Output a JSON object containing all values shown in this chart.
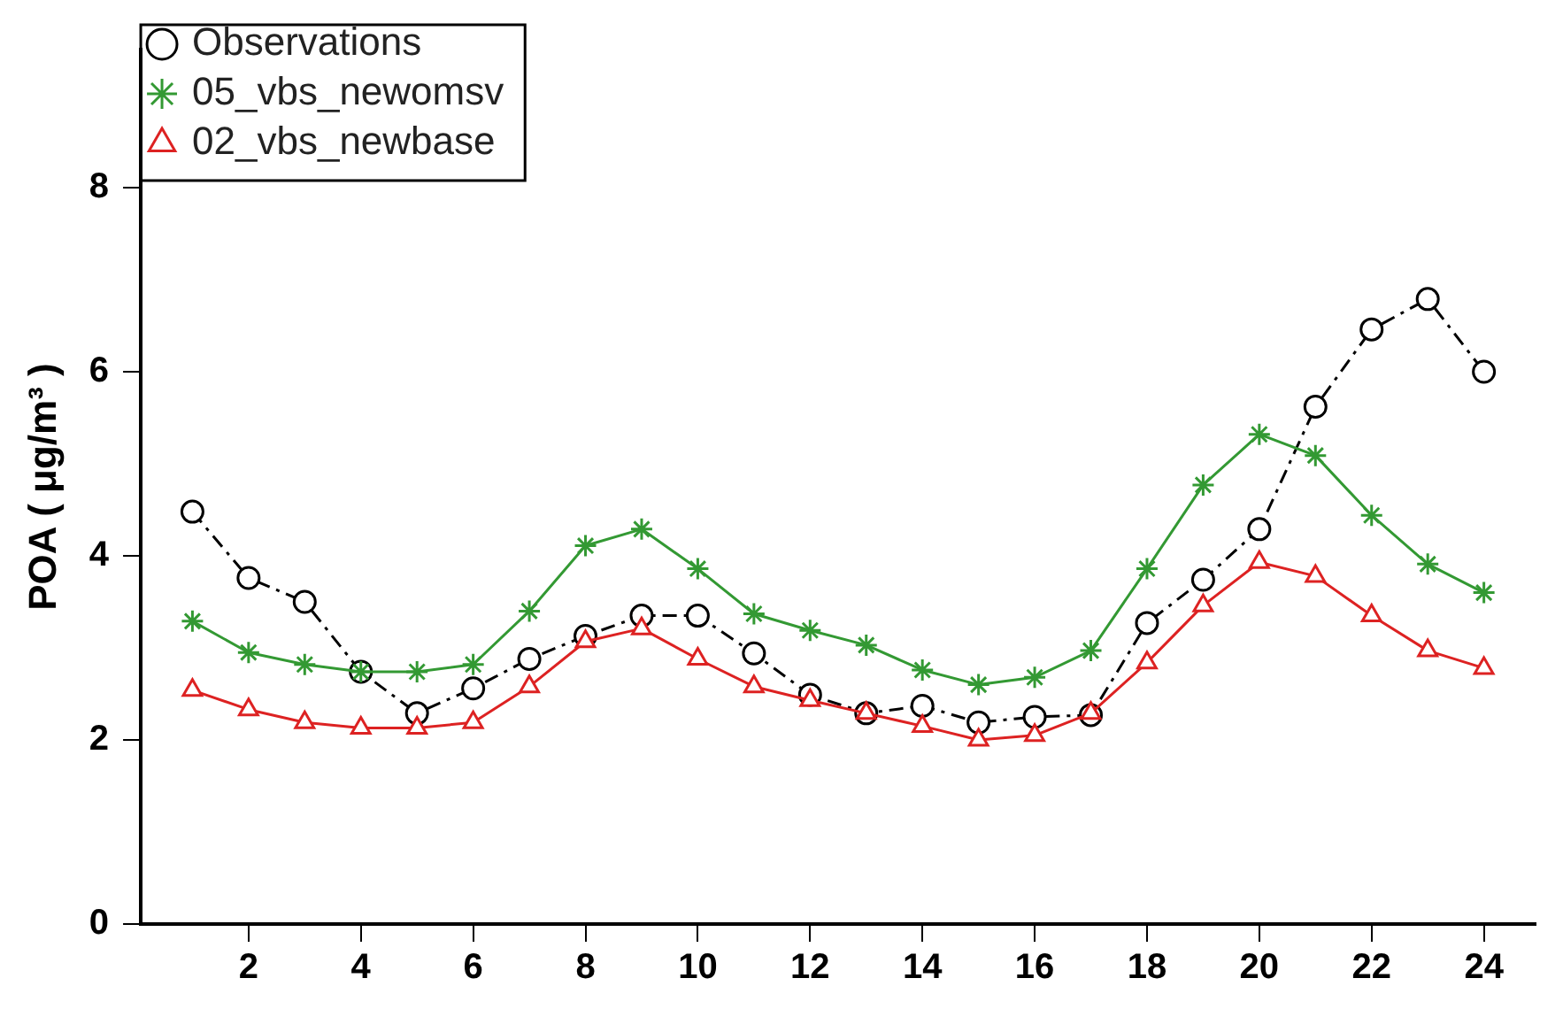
{
  "chart_data": {
    "type": "line",
    "ylabel": "POA ( μg/m³ )",
    "x": [
      1,
      2,
      3,
      4,
      5,
      6,
      7,
      8,
      9,
      10,
      11,
      12,
      13,
      14,
      15,
      16,
      17,
      18,
      19,
      20,
      21,
      22,
      23,
      24
    ],
    "xlim": [
      0.08,
      24.92
    ],
    "xticks": [
      2,
      4,
      6,
      8,
      10,
      12,
      14,
      16,
      18,
      20,
      22,
      24
    ],
    "ylim": [
      0,
      9.5
    ],
    "yticks": [
      0,
      2,
      4,
      6,
      8
    ],
    "grid": false,
    "legend": "top left",
    "series": [
      {
        "name": "Observations",
        "color": "#000000",
        "marker": "circle",
        "line_style": "dashed",
        "values": [
          4.48,
          3.76,
          3.5,
          2.74,
          2.29,
          2.56,
          2.88,
          3.13,
          3.35,
          3.35,
          2.94,
          2.49,
          2.29,
          2.37,
          2.19,
          2.25,
          2.27,
          3.27,
          3.74,
          4.29,
          5.62,
          6.46,
          6.79,
          6.0
        ]
      },
      {
        "name": "05_vbs_newomsv",
        "color": "#339933",
        "marker": "cross",
        "line_style": "solid",
        "values": [
          3.29,
          2.95,
          2.82,
          2.74,
          2.74,
          2.82,
          3.4,
          4.11,
          4.29,
          3.86,
          3.37,
          3.19,
          3.03,
          2.76,
          2.6,
          2.68,
          2.97,
          3.86,
          4.77,
          5.32,
          5.09,
          4.44,
          3.91,
          3.6
        ]
      },
      {
        "name": "02_vbs_newbase",
        "color": "#dd2222",
        "marker": "triangle",
        "line_style": "solid",
        "values": [
          2.54,
          2.33,
          2.19,
          2.13,
          2.13,
          2.19,
          2.58,
          3.07,
          3.21,
          2.88,
          2.58,
          2.43,
          2.29,
          2.15,
          2.0,
          2.05,
          2.29,
          2.84,
          3.46,
          3.93,
          3.78,
          3.35,
          2.97,
          2.78
        ]
      }
    ]
  }
}
